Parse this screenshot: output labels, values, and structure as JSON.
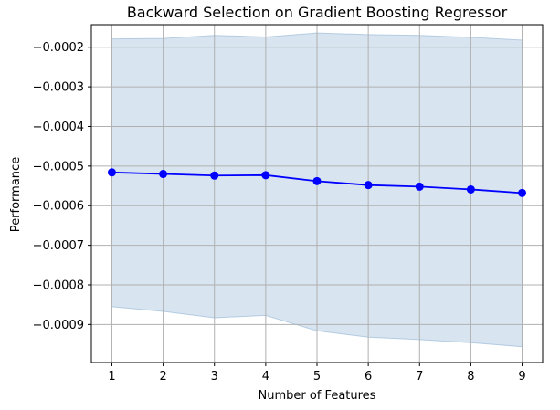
{
  "chart_data": {
    "type": "line",
    "title": "Backward Selection on Gradient Boosting Regressor",
    "xlabel": "Number of Features",
    "ylabel": "Performance",
    "x": [
      1,
      2,
      3,
      4,
      5,
      6,
      7,
      8,
      9
    ],
    "series": [
      {
        "values": [
          -0.000516,
          -0.00052,
          -0.000524,
          -0.000523,
          -0.000538,
          -0.000548,
          -0.000552,
          -0.000559,
          -0.000568
        ],
        "upper": [
          -0.000179,
          -0.000178,
          -0.00017,
          -0.000174,
          -0.000164,
          -0.000168,
          -0.00017,
          -0.000175,
          -0.000182
        ],
        "lower": [
          -0.000855,
          -0.000867,
          -0.000883,
          -0.000877,
          -0.000916,
          -0.000932,
          -0.000938,
          -0.000946,
          -0.000956
        ]
      }
    ],
    "xticks": [
      "1",
      "2",
      "3",
      "4",
      "5",
      "6",
      "7",
      "8",
      "9"
    ],
    "yticks": [
      {
        "value": -0.0002,
        "label": "−0.0002"
      },
      {
        "value": -0.0003,
        "label": "−0.0003"
      },
      {
        "value": -0.0004,
        "label": "−0.0004"
      },
      {
        "value": -0.0005,
        "label": "−0.0005"
      },
      {
        "value": -0.0006,
        "label": "−0.0006"
      },
      {
        "value": -0.0007,
        "label": "−0.0007"
      },
      {
        "value": -0.0008,
        "label": "−0.0008"
      },
      {
        "value": -0.0009,
        "label": "−0.0009"
      }
    ],
    "xlim": [
      0.6,
      9.4
    ],
    "ylim": [
      -0.000996,
      -0.000143
    ],
    "grid": true,
    "colors": {
      "line": "#0000ff",
      "marker": "#0000ff",
      "band_fill": "#b8cfe3",
      "band_edge": "#8fb2d4",
      "grid": "#b0b0b0",
      "axes": "#000000"
    }
  }
}
